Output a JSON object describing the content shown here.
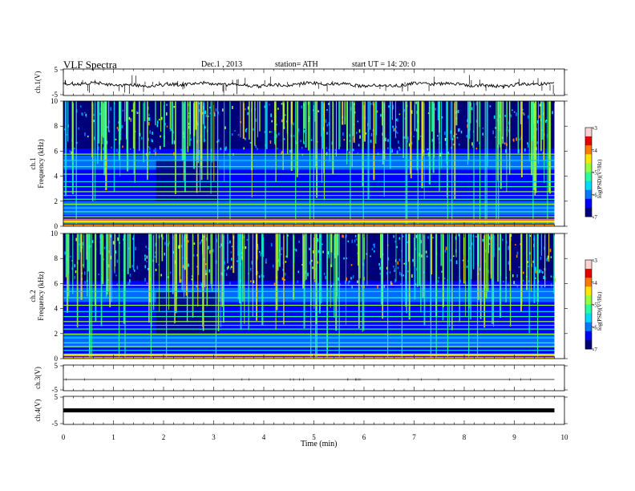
{
  "header": {
    "title": "VLF  Spectra",
    "date": "Dec.1  , 2013",
    "station": "station= ATH",
    "start": "start  UT  =    14: 20: 0"
  },
  "chart_data": [
    {
      "type": "line",
      "title": "VLF  Spectra",
      "ylabel": "ch.1(V)",
      "ylim": [
        -5,
        5
      ],
      "yticks": [
        "5",
        "-5"
      ],
      "xlim": [
        0,
        10
      ],
      "x": [
        0,
        0.5,
        1,
        1.5,
        2,
        2.5,
        3,
        3.5,
        4,
        4.5,
        5,
        5.5,
        6,
        6.5,
        7,
        7.5,
        8,
        8.5,
        9,
        9.5,
        9.8
      ],
      "y": [
        0.5,
        0.1,
        0.2,
        0.6,
        -0.3,
        0.2,
        0.1,
        -0.2,
        0.3,
        -0.1,
        0.4,
        -0.4,
        0.3,
        -0.3,
        0.1,
        0.2,
        -0.1,
        0.1,
        0.3,
        0.2,
        0.1
      ]
    },
    {
      "type": "heatmap",
      "ylabel": "ch.1\nFrequency  (kHz)",
      "ylim": [
        0,
        10
      ],
      "yticks": [
        "0",
        "2",
        "4",
        "6",
        "8",
        "10"
      ],
      "xlim": [
        0,
        10
      ],
      "colorbar": {
        "label": "log(PSD)(V²/Hz)",
        "range": [
          -7,
          -3
        ],
        "ticks": [
          "-3",
          "-4",
          "-5",
          "-6",
          "-7"
        ]
      },
      "lineFreqs": [
        0.3,
        0.55,
        0.8,
        1.2,
        1.5,
        1.8,
        2.2,
        2.5,
        2.8,
        3.2,
        3.6,
        4.2,
        4.8,
        5.3,
        5.8
      ],
      "strongFreqs": [
        0.2,
        0.45,
        0.6
      ]
    },
    {
      "type": "heatmap",
      "ylabel": "ch.2\nFrequency  (kHz)",
      "ylim": [
        0,
        10
      ],
      "yticks": [
        "0",
        "2",
        "4",
        "6",
        "8",
        "10"
      ],
      "xlim": [
        0,
        10
      ],
      "colorbar": {
        "label": "log(PSD)(V²/Hz)",
        "range": [
          -7,
          -3
        ],
        "ticks": [
          "-3",
          "-4",
          "-5",
          "-6",
          "-7"
        ]
      },
      "lineFreqs": [
        0.4,
        0.7,
        1.0,
        1.3,
        1.7,
        2.0,
        2.4,
        2.7,
        3.0,
        3.4,
        3.8,
        4.3,
        4.9,
        5.4,
        5.9
      ],
      "strongFreqs": [
        0.15,
        0.35
      ]
    },
    {
      "type": "line",
      "ylabel": "ch.3(V)",
      "ylim": [
        -5,
        5
      ],
      "yticks": [
        "5",
        "-5"
      ],
      "xlim": [
        0,
        10
      ],
      "x": [
        0,
        9.8
      ],
      "y": [
        0,
        0
      ]
    },
    {
      "type": "line",
      "ylabel": "ch.4(V)",
      "ylim": [
        -5,
        5
      ],
      "yticks": [
        "5",
        "-5"
      ],
      "xlim": [
        0,
        10
      ],
      "x": [
        0,
        9.8
      ],
      "y": [
        0,
        0
      ]
    }
  ],
  "xaxis": {
    "label": "Time  (min)",
    "ticks": [
      "0",
      "1",
      "2",
      "3",
      "4",
      "5",
      "6",
      "7",
      "8",
      "9",
      "10"
    ]
  },
  "colors": [
    "#00007a",
    "#0000ff",
    "#0078ff",
    "#00dcff",
    "#28ff9e",
    "#96ff3c",
    "#ffe600",
    "#ff7a00",
    "#e60000",
    "#ffd2d2"
  ]
}
